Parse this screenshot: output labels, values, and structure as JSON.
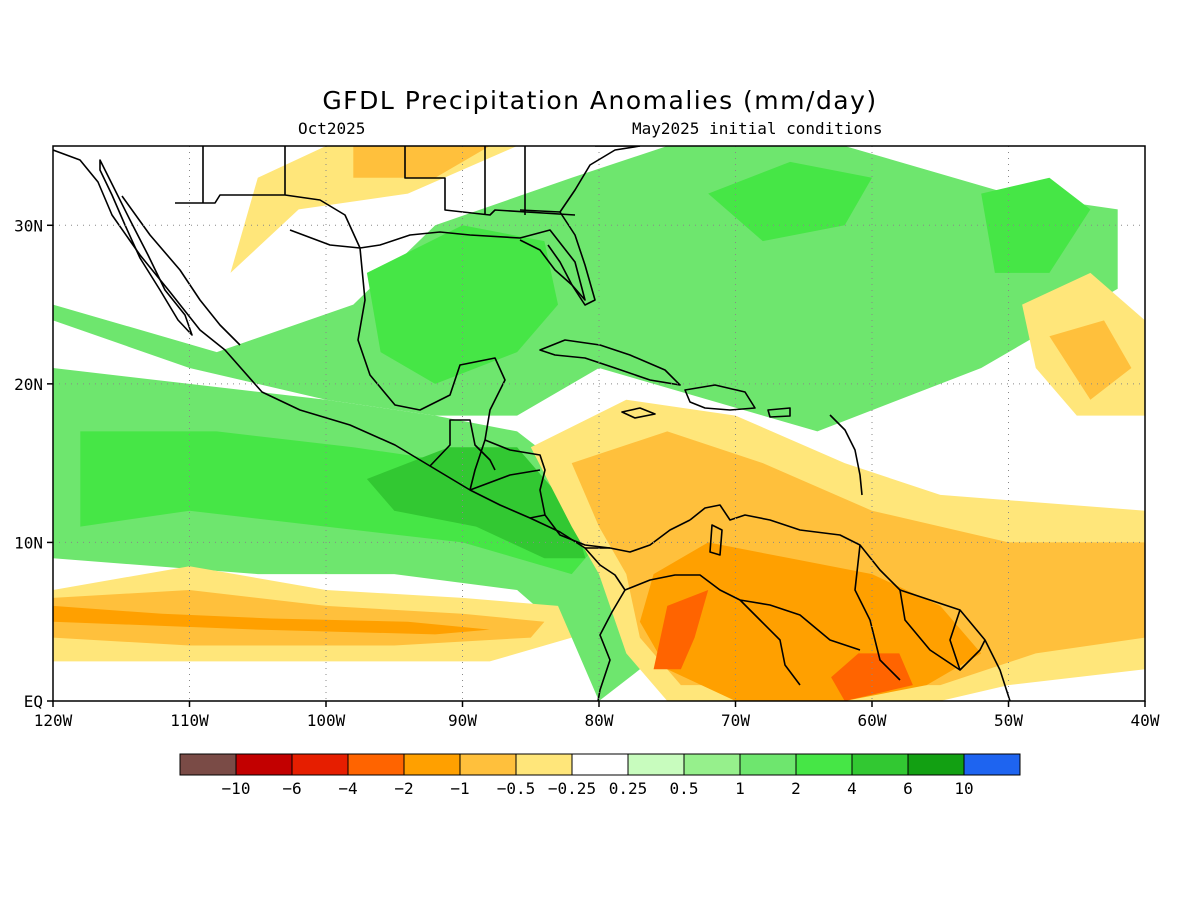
{
  "title": "GFDL Precipitation Anomalies (mm/day)",
  "subtitle_left": "Oct2025",
  "subtitle_right": "May2025 initial conditions",
  "map": {
    "lon_range": [
      -120,
      -40
    ],
    "lat_range": [
      0,
      35
    ],
    "lon_ticks": [
      {
        "value": -120,
        "label": "120W"
      },
      {
        "value": -110,
        "label": "110W"
      },
      {
        "value": -100,
        "label": "100W"
      },
      {
        "value": -90,
        "label": "90W"
      },
      {
        "value": -80,
        "label": "80W"
      },
      {
        "value": -70,
        "label": "70W"
      },
      {
        "value": -60,
        "label": "60W"
      },
      {
        "value": -50,
        "label": "50W"
      },
      {
        "value": -40,
        "label": "40W"
      }
    ],
    "lat_ticks": [
      {
        "value": 0,
        "label": "EQ"
      },
      {
        "value": 10,
        "label": "10N"
      },
      {
        "value": 20,
        "label": "20N"
      },
      {
        "value": 30,
        "label": "30N"
      }
    ],
    "grid": true,
    "ocean_color": "#ffffff",
    "coastline_color": "#000000"
  },
  "legend": {
    "colors": [
      "#7a4b46",
      "#c20000",
      "#e61e00",
      "#ff6400",
      "#ffa000",
      "#ffc03c",
      "#ffe67a",
      "#ffffff",
      "#c8fcbe",
      "#96f08c",
      "#6ee66e",
      "#46e646",
      "#32c832",
      "#12a012",
      "#1e64f0"
    ],
    "labels": [
      "−10",
      "−6",
      "−4",
      "−2",
      "−1",
      "−0.5",
      "−0.25",
      "0.25",
      "0.5",
      "1",
      "2",
      "4",
      "6",
      "10"
    ]
  },
  "anomaly_regions": [
    {
      "name": "north-america-wet-band",
      "value": 1,
      "poly": [
        [
          -120,
          25
        ],
        [
          -108,
          22
        ],
        [
          -98,
          25
        ],
        [
          -92,
          30
        ],
        [
          -82,
          33
        ],
        [
          -75,
          35
        ],
        [
          -62,
          35
        ],
        [
          -50,
          32
        ],
        [
          -42,
          31
        ],
        [
          -42,
          26
        ],
        [
          -52,
          21
        ],
        [
          -64,
          17
        ],
        [
          -72,
          19
        ],
        [
          -80,
          21
        ],
        [
          -86,
          18
        ],
        [
          -92,
          18
        ],
        [
          -100,
          19
        ],
        [
          -110,
          21
        ],
        [
          -120,
          24
        ]
      ]
    },
    {
      "name": "gulf-of-mexico-wet",
      "value": 2,
      "poly": [
        [
          -97,
          27
        ],
        [
          -90,
          30
        ],
        [
          -84,
          29
        ],
        [
          -83,
          25
        ],
        [
          -86,
          22
        ],
        [
          -92,
          20
        ],
        [
          -96,
          22
        ]
      ]
    },
    {
      "name": "atlantic-wet-core",
      "value": 2,
      "poly": [
        [
          -72,
          32
        ],
        [
          -66,
          34
        ],
        [
          -60,
          33
        ],
        [
          -62,
          30
        ],
        [
          -68,
          29
        ]
      ]
    },
    {
      "name": "east-atlantic-wet-core",
      "value": 2,
      "poly": [
        [
          -52,
          32
        ],
        [
          -47,
          33
        ],
        [
          -44,
          31
        ],
        [
          -47,
          27
        ],
        [
          -51,
          27
        ]
      ]
    },
    {
      "name": "pacific-wet-band",
      "value": 1,
      "poly": [
        [
          -120,
          21
        ],
        [
          -110,
          20
        ],
        [
          -100,
          19
        ],
        [
          -92,
          18
        ],
        [
          -86,
          17
        ],
        [
          -80,
          13
        ],
        [
          -77,
          10
        ],
        [
          -76,
          6
        ],
        [
          -77,
          2
        ],
        [
          -80,
          0
        ],
        [
          -82,
          4
        ],
        [
          -86,
          7
        ],
        [
          -95,
          8
        ],
        [
          -105,
          8
        ],
        [
          -120,
          9
        ]
      ]
    },
    {
      "name": "pacific-wet-core",
      "value": 2,
      "poly": [
        [
          -118,
          17
        ],
        [
          -108,
          17
        ],
        [
          -98,
          16
        ],
        [
          -90,
          15
        ],
        [
          -84,
          14
        ],
        [
          -80,
          10
        ],
        [
          -82,
          8
        ],
        [
          -90,
          10
        ],
        [
          -100,
          11
        ],
        [
          -110,
          12
        ],
        [
          -118,
          11
        ]
      ]
    },
    {
      "name": "central-america-wet-core",
      "value": 4,
      "poly": [
        [
          -97,
          14
        ],
        [
          -91,
          16
        ],
        [
          -86,
          16
        ],
        [
          -82,
          12
        ],
        [
          -81,
          9
        ],
        [
          -84,
          9
        ],
        [
          -89,
          11
        ],
        [
          -95,
          12
        ]
      ]
    },
    {
      "name": "itcz-dry-outer",
      "value": -0.5,
      "poly": [
        [
          -120,
          7
        ],
        [
          -110,
          8.5
        ],
        [
          -100,
          7
        ],
        [
          -90,
          6.5
        ],
        [
          -83,
          6
        ],
        [
          -82,
          4
        ],
        [
          -88,
          2.5
        ],
        [
          -100,
          2.5
        ],
        [
          -110,
          2.5
        ],
        [
          -120,
          2.5
        ]
      ]
    },
    {
      "name": "itcz-dry-core",
      "value": -1,
      "poly": [
        [
          -120,
          6.5
        ],
        [
          -110,
          7
        ],
        [
          -100,
          6
        ],
        [
          -90,
          5.5
        ],
        [
          -84,
          5
        ],
        [
          -85,
          4
        ],
        [
          -95,
          3.5
        ],
        [
          -110,
          3.5
        ],
        [
          -120,
          4
        ]
      ]
    },
    {
      "name": "itcz-dry-inner",
      "value": -2,
      "poly": [
        [
          -120,
          6
        ],
        [
          -112,
          5.5
        ],
        [
          -104,
          5.2
        ],
        [
          -94,
          5
        ],
        [
          -88,
          4.5
        ],
        [
          -92,
          4.2
        ],
        [
          -105,
          4.5
        ],
        [
          -120,
          5
        ]
      ]
    },
    {
      "name": "caribbean-dry-outer",
      "value": -0.5,
      "poly": [
        [
          -85,
          16
        ],
        [
          -78,
          19
        ],
        [
          -70,
          18
        ],
        [
          -62,
          15
        ],
        [
          -55,
          13
        ],
        [
          -40,
          12
        ],
        [
          -40,
          2
        ],
        [
          -50,
          1
        ],
        [
          -55,
          0
        ],
        [
          -75,
          0
        ],
        [
          -78,
          3
        ],
        [
          -80,
          8
        ],
        [
          -82,
          11
        ]
      ]
    },
    {
      "name": "caribbean-dry-core",
      "value": -1,
      "poly": [
        [
          -82,
          15
        ],
        [
          -75,
          17
        ],
        [
          -68,
          15
        ],
        [
          -60,
          12
        ],
        [
          -50,
          10
        ],
        [
          -40,
          10
        ],
        [
          -40,
          4
        ],
        [
          -48,
          3
        ],
        [
          -55,
          1
        ],
        [
          -74,
          1
        ],
        [
          -77,
          4
        ],
        [
          -78,
          8
        ],
        [
          -80,
          11
        ]
      ]
    },
    {
      "name": "south-america-dry-core",
      "value": -2,
      "poly": [
        [
          -76,
          8
        ],
        [
          -72,
          10
        ],
        [
          -66,
          9
        ],
        [
          -60,
          8
        ],
        [
          -55,
          6
        ],
        [
          -52,
          3
        ],
        [
          -56,
          1
        ],
        [
          -62,
          0
        ],
        [
          -70,
          0
        ],
        [
          -75,
          2
        ],
        [
          -77,
          5
        ]
      ]
    },
    {
      "name": "colombia-dry-inner",
      "value": -4,
      "poly": [
        [
          -75,
          6
        ],
        [
          -72,
          7
        ],
        [
          -73,
          4
        ],
        [
          -74,
          2
        ],
        [
          -76,
          2
        ]
      ]
    },
    {
      "name": "guiana-dry-inner",
      "value": -4,
      "poly": [
        [
          -61,
          3
        ],
        [
          -58,
          3
        ],
        [
          -57,
          1
        ],
        [
          -62,
          0
        ],
        [
          -63,
          1.5
        ]
      ]
    },
    {
      "name": "atlantic-dry-north",
      "value": -0.5,
      "poly": [
        [
          -49,
          25
        ],
        [
          -44,
          27
        ],
        [
          -40,
          24
        ],
        [
          -40,
          18
        ],
        [
          -45,
          18
        ],
        [
          -48,
          21
        ]
      ]
    },
    {
      "name": "atlantic-dry-north-core",
      "value": -1,
      "poly": [
        [
          -47,
          23
        ],
        [
          -43,
          24
        ],
        [
          -41,
          21
        ],
        [
          -44,
          19
        ]
      ]
    },
    {
      "name": "us-dry-outer",
      "value": -0.5,
      "poly": [
        [
          -107,
          27
        ],
        [
          -102,
          31
        ],
        [
          -94,
          32
        ],
        [
          -86,
          35
        ],
        [
          -100,
          35
        ],
        [
          -105,
          33
        ]
      ]
    },
    {
      "name": "us-dry-core",
      "value": -1,
      "poly": [
        [
          -98,
          33
        ],
        [
          -92,
          33
        ],
        [
          -88,
          35
        ],
        [
          -98,
          35
        ]
      ]
    }
  ]
}
